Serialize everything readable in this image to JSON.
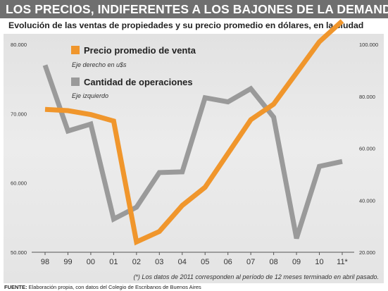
{
  "header": {
    "title": "LOS PRECIOS, INDIFERENTES A LOS BAJONES DE LA DEMANDA",
    "subtitle": "Evolución de las ventas de propiedades y su precio promedio en dólares, en la ciudad"
  },
  "footer": {
    "source_label": "FUENTE:",
    "source_text": "Elaboración propia, con datos del Colegio de Escribanos de Buenos Aires"
  },
  "colors": {
    "price": "#f0962c",
    "operations": "#9a9a9a",
    "banner": "#6f6f6f"
  },
  "chart_data": {
    "type": "line",
    "categories": [
      "98",
      "99",
      "00",
      "01",
      "02",
      "03",
      "04",
      "05",
      "06",
      "07",
      "08",
      "09",
      "10",
      "11*"
    ],
    "y_left": {
      "ticks": [
        "50.000",
        "60.000",
        "70.000",
        "80.000"
      ],
      "range": [
        50000,
        80000
      ]
    },
    "y_right": {
      "ticks": [
        "20.000",
        "40.000",
        "60.000",
        "80.000",
        "100.000"
      ],
      "range": [
        20000,
        100000
      ]
    },
    "grid": false,
    "legend_position": "top-left",
    "footnote": "(*) Los datos de 2011 corresponden al período de 12 meses terminado en abril pasado.",
    "series": [
      {
        "name": "Precio promedio de venta",
        "note": "Eje derecho en u$s",
        "axis": "right",
        "color": "#f0962c",
        "values": [
          75000,
          74500,
          73000,
          70500,
          24000,
          28000,
          38000,
          45000,
          58000,
          71000,
          77000,
          89000,
          101000,
          109000
        ]
      },
      {
        "name": "Cantidad de operaciones",
        "note": "Eje izquierdo",
        "axis": "left",
        "color": "#9a9a9a",
        "values": [
          77000,
          67500,
          68500,
          54800,
          56500,
          61500,
          61600,
          72300,
          71700,
          73600,
          69500,
          52000,
          62400,
          63100
        ]
      }
    ]
  }
}
